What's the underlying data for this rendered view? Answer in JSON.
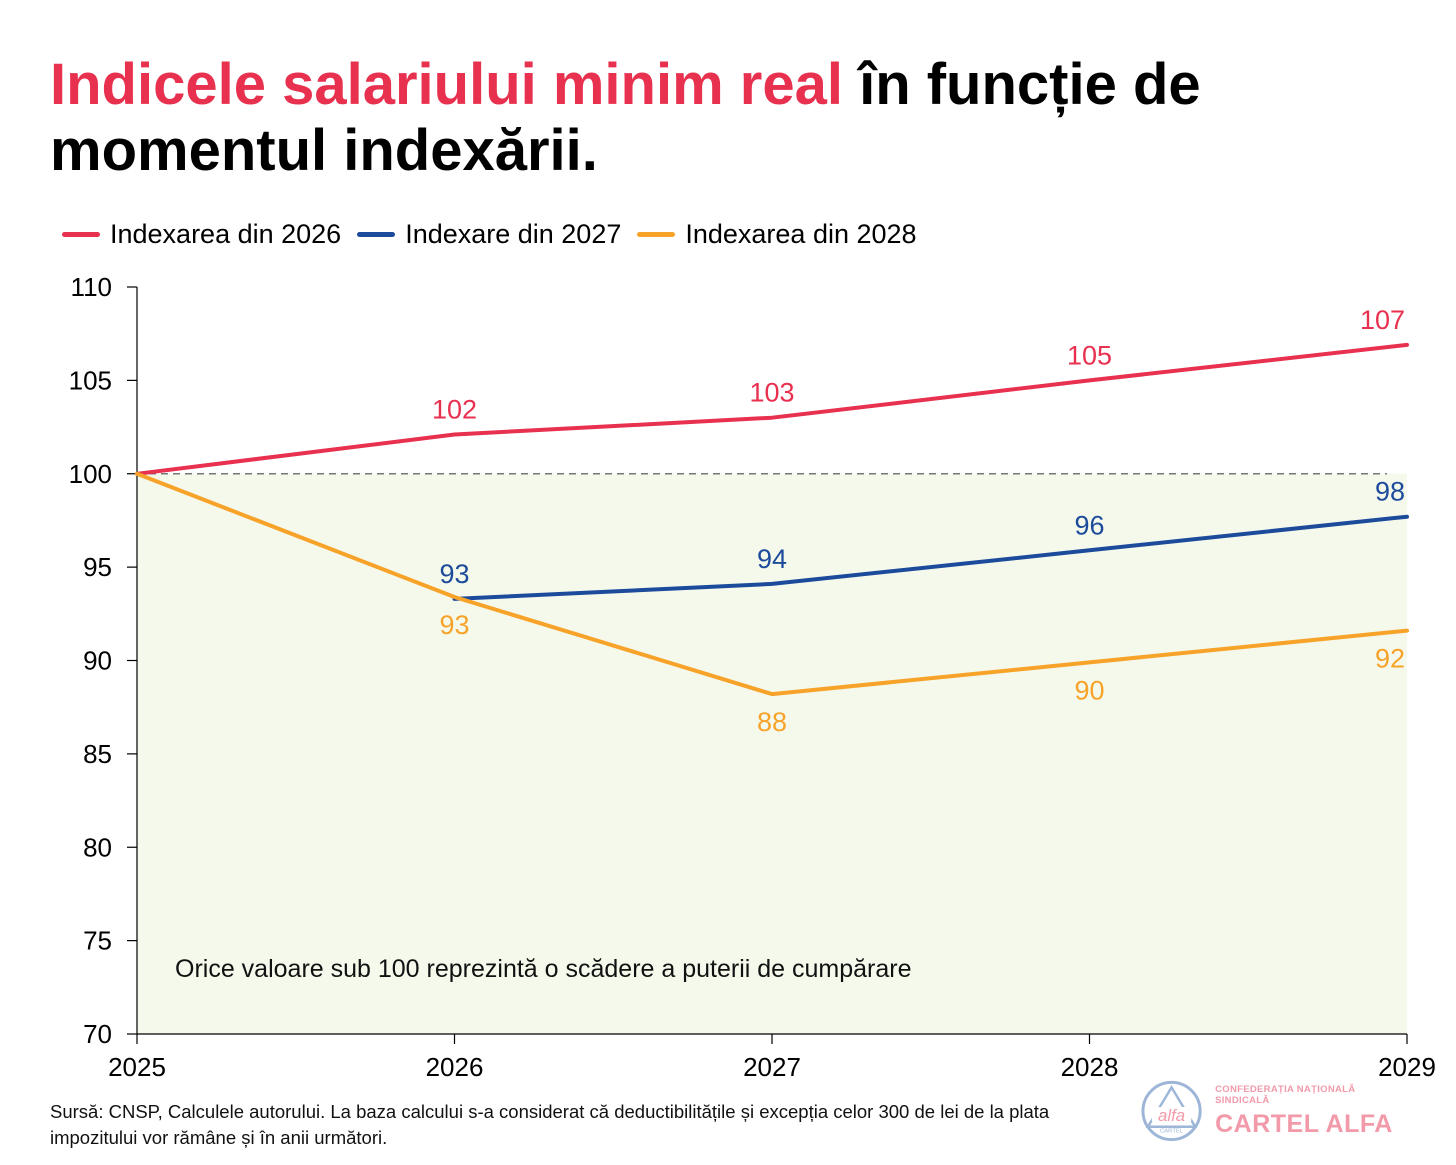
{
  "title": {
    "highlight": "Indicele salariului minim real",
    "rest_line1": " în funcție de",
    "line2": "momentul indexării."
  },
  "chart_data": {
    "type": "line",
    "x": [
      2025,
      2026,
      2027,
      2028,
      2029
    ],
    "x_tick_labels": [
      "2025",
      "2026",
      "2027",
      "2028",
      "2029"
    ],
    "ylim": [
      70,
      110
    ],
    "y_ticks": [
      70,
      75,
      80,
      85,
      90,
      95,
      100,
      105,
      110
    ],
    "reference_line": 100,
    "shaded_below": 100,
    "grid": false,
    "legend_position": "top-left",
    "series": [
      {
        "name": "Indexarea din 2026",
        "color": "#e8304f",
        "label_position": "above",
        "x": [
          2025,
          2026,
          2027,
          2028,
          2029
        ],
        "values": [
          100,
          102.1,
          103,
          105,
          106.9
        ],
        "labels": [
          "",
          "102",
          "103",
          "105",
          "107"
        ]
      },
      {
        "name": "Indexare din 2027",
        "color": "#1d4b9b",
        "label_position": "above",
        "x": [
          2026,
          2027,
          2028,
          2029
        ],
        "values": [
          93.3,
          94.1,
          95.9,
          97.7
        ],
        "labels": [
          "93",
          "94",
          "96",
          "98"
        ]
      },
      {
        "name": "Indexarea din 2028",
        "color": "#f7a32a",
        "label_position": "below",
        "x": [
          2025,
          2026,
          2027,
          2028,
          2029
        ],
        "values": [
          100,
          93.4,
          88.2,
          89.9,
          91.6
        ],
        "labels": [
          "",
          "93",
          "88",
          "90",
          "92"
        ]
      }
    ],
    "annotation": "Orice valoare sub 100 reprezintă o scădere a puterii de cumpărare",
    "colors": {
      "shade": "#f5f9ec",
      "reference": "#777777",
      "axis": "#000000"
    }
  },
  "source_note": "Sursă: CNSP, Calculele autorului. La baza calcului s-a considerat că deductibilitățile și excepția celor 300 de lei de la plata impozitului vor rămâne și în anii următori.",
  "logo": {
    "mark_word": "alfa",
    "mark_small": "CARTEL",
    "subtitle": "CONFEDERAȚIA NAȚIONALĂ SINDICALĂ",
    "name": "CARTEL ALFA",
    "color": "#f29aa9"
  }
}
